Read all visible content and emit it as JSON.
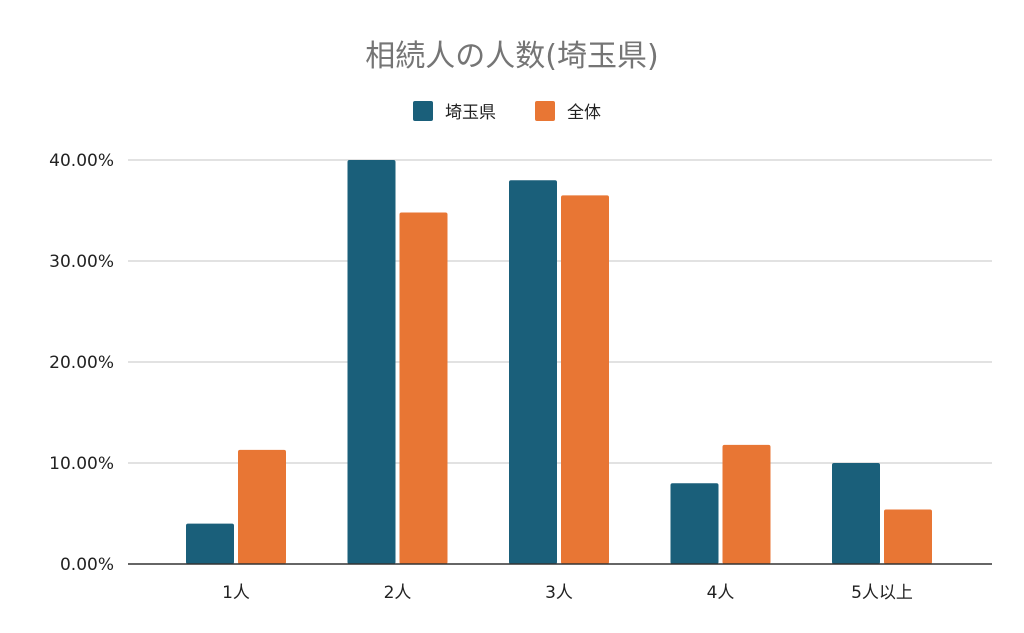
{
  "chart_data": {
    "type": "bar",
    "title": "相続人の人数(埼玉県)",
    "xlabel": "",
    "ylabel": "",
    "categories": [
      "1人",
      "2人",
      "3人",
      "4人",
      "5人以上"
    ],
    "series": [
      {
        "name": "埼玉県",
        "values": [
          4.0,
          40.0,
          38.0,
          8.0,
          10.0
        ],
        "color": "#1a5f7a"
      },
      {
        "name": "全体",
        "values": [
          11.3,
          34.8,
          36.5,
          11.8,
          5.4
        ],
        "color": "#e87634"
      }
    ],
    "ylim": [
      0,
      40
    ],
    "yticks": [
      "0.00%",
      "10.00%",
      "20.00%",
      "30.00%",
      "40.00%"
    ],
    "grid": true,
    "legend_position": "top-center"
  }
}
